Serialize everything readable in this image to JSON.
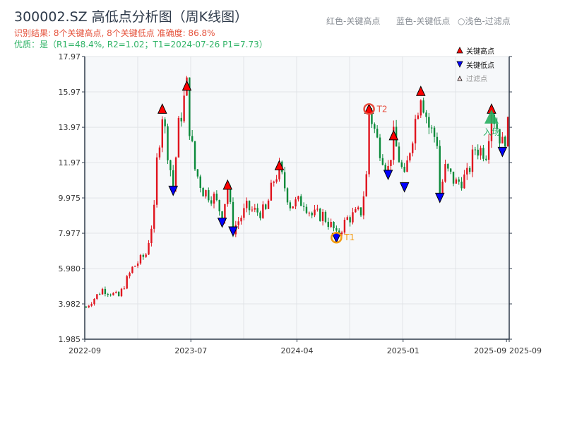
{
  "title": "300002.SZ 高低点分析图（周K线图）",
  "result_line": "识别结果: 8个关键高点, 8个关键低点   准确度: 86.8%",
  "quality_line": "优质：是（R1=48.4%, R2=1.02；T1=2024-07-26 P1=7.73）",
  "top_legend": [
    "红色-关键高点",
    "蓝色-关键低点",
    "○浅色-过滤点"
  ],
  "colors": {
    "up": "#e0141e",
    "down": "#0a8a3a",
    "high_marker": "#ff0000",
    "low_marker": "#0000ff",
    "t1": "#f39c12",
    "t2": "#e74c3c",
    "entry": "#27ae60"
  },
  "chart_data": {
    "type": "candlestick",
    "weeks": 156,
    "ylim": [
      1.985,
      17.97
    ],
    "yticks": [
      "1.985",
      "3.982",
      "5.980",
      "7.977",
      "9.975",
      "11.97",
      "13.97",
      "15.97",
      "17.97"
    ],
    "xticks": [
      {
        "week": 0,
        "label": "2022-09"
      },
      {
        "week": 39,
        "label": "2023-07"
      },
      {
        "week": 78,
        "label": "2024-04"
      },
      {
        "week": 117,
        "label": "2025-01"
      },
      {
        "week": 155,
        "label": "2025-09"
      },
      {
        "week": 156,
        "label": "2025-09"
      }
    ],
    "close_path": [
      [
        0,
        3.8
      ],
      [
        6,
        4.8
      ],
      [
        12,
        4.4
      ],
      [
        17,
        6.0
      ],
      [
        22,
        6.8
      ],
      [
        25,
        9.2
      ],
      [
        26,
        12.0
      ],
      [
        28,
        14.8
      ],
      [
        31,
        11.6
      ],
      [
        32,
        10.6
      ],
      [
        34,
        14.0
      ],
      [
        37,
        16.3
      ],
      [
        38,
        14.0
      ],
      [
        40,
        11.6
      ],
      [
        43,
        10.4
      ],
      [
        47,
        10.0
      ],
      [
        50,
        9.0
      ],
      [
        52,
        10.6
      ],
      [
        54,
        8.2
      ],
      [
        59,
        9.4
      ],
      [
        62,
        9.2
      ],
      [
        66,
        9.2
      ],
      [
        69,
        11.0
      ],
      [
        71,
        11.6
      ],
      [
        75,
        9.6
      ],
      [
        80,
        9.8
      ],
      [
        83,
        9.0
      ],
      [
        87,
        9.0
      ],
      [
        91,
        8.2
      ],
      [
        92,
        7.8
      ],
      [
        96,
        8.8
      ],
      [
        101,
        9.2
      ],
      [
        103,
        11.2
      ],
      [
        104,
        15.0
      ],
      [
        107,
        13.2
      ],
      [
        111,
        11.6
      ],
      [
        113,
        13.4
      ],
      [
        117,
        11.0
      ],
      [
        119,
        12.8
      ],
      [
        123,
        16.0
      ],
      [
        126,
        14.0
      ],
      [
        129,
        13.2
      ],
      [
        130,
        10.2
      ],
      [
        132,
        11.6
      ],
      [
        136,
        10.8
      ],
      [
        140,
        11.2
      ],
      [
        143,
        12.8
      ],
      [
        147,
        12.6
      ],
      [
        149,
        15.0
      ],
      [
        153,
        13.0
      ],
      [
        156,
        14.4
      ]
    ],
    "key_highs": [
      {
        "week": 28,
        "price": 15.0
      },
      {
        "week": 37,
        "price": 16.3
      },
      {
        "week": 52,
        "price": 10.7
      },
      {
        "week": 71,
        "price": 11.8
      },
      {
        "week": 104,
        "price": 15.0
      },
      {
        "week": 113,
        "price": 13.5
      },
      {
        "week": 123,
        "price": 16.0
      },
      {
        "week": 149,
        "price": 15.0
      }
    ],
    "key_lows": [
      {
        "week": 32,
        "price": 10.4
      },
      {
        "week": 50,
        "price": 8.6
      },
      {
        "week": 54,
        "price": 8.1
      },
      {
        "week": 92,
        "price": 7.73
      },
      {
        "week": 111,
        "price": 11.3
      },
      {
        "week": 117,
        "price": 10.6
      },
      {
        "week": 130,
        "price": 10.0
      },
      {
        "week": 153,
        "price": 12.6
      }
    ],
    "t1": {
      "week": 92,
      "price": 7.73,
      "label": "T1"
    },
    "t2": {
      "week": 104,
      "price": 15.0,
      "label": "T2"
    },
    "entry": {
      "week": 149,
      "price": 14.5,
      "label": "入场"
    },
    "legend": [
      "关键高点",
      "关键低点",
      "过滤点"
    ],
    "legend_position": "top-right",
    "grid": true
  }
}
